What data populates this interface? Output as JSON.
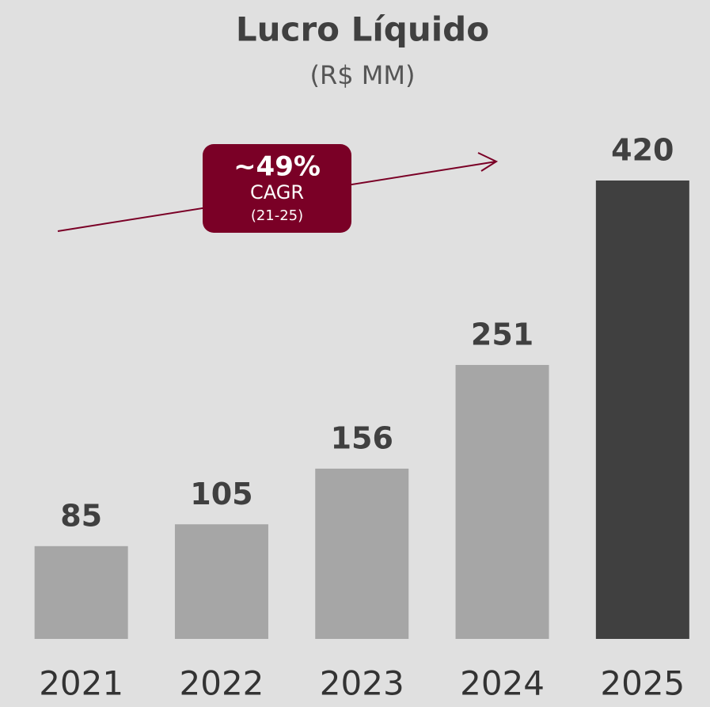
{
  "chart_data": {
    "type": "bar",
    "title": "Lucro Líquido",
    "subtitle": "(R$ MM)",
    "categories": [
      "2021",
      "2022",
      "2023",
      "2024",
      "2025"
    ],
    "values": [
      85,
      105,
      156,
      251,
      420
    ],
    "colors": [
      "#a6a6a6",
      "#a6a6a6",
      "#a6a6a6",
      "#a6a6a6",
      "#404040"
    ],
    "annotations": [
      "~49%",
      "CAGR",
      "(21-25)"
    ],
    "annotation_color": "#7a0026"
  }
}
